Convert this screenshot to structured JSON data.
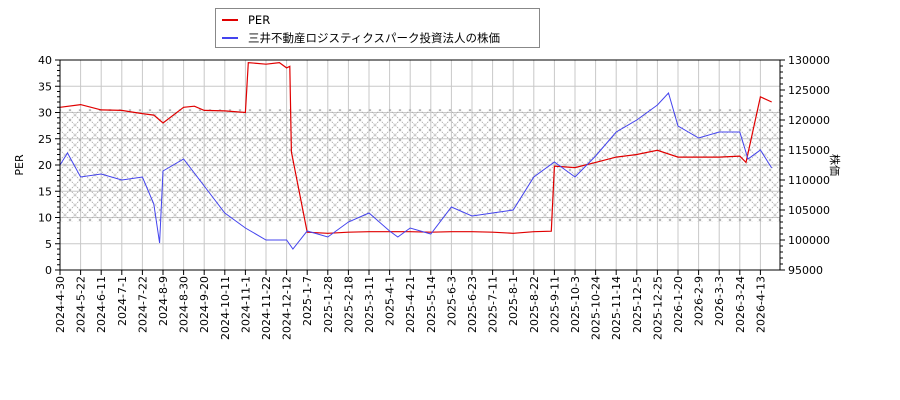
{
  "legend": {
    "items": [
      {
        "label": "PER",
        "color": "#e00000"
      },
      {
        "label": "三井不動産ロジスティクスパーク投資法人の株価",
        "color": "#4444ee"
      }
    ]
  },
  "axes": {
    "left_title": "PER",
    "right_title": "株価"
  },
  "chart_data": {
    "type": "line",
    "title": "",
    "xlabel": "",
    "ylabel": "PER",
    "ylabel_right": "株価",
    "ylim": [
      0,
      40
    ],
    "ylim_right": [
      95000,
      130000
    ],
    "yticks": [
      0,
      5,
      10,
      15,
      20,
      25,
      30,
      35,
      40
    ],
    "yticks_right": [
      95000,
      100000,
      105000,
      110000,
      115000,
      120000,
      125000,
      130000
    ],
    "grid": true,
    "legend_position": "top-left-outside",
    "x_tick_labels": [
      "2024-4-30",
      "2024-5-22",
      "2024-6-11",
      "2024-7-1",
      "2024-7-22",
      "2024-8-9",
      "2024-8-30",
      "2024-9-20",
      "2024-10-11",
      "2024-11-1",
      "2024-11-22",
      "2024-12-12",
      "2025-1-7",
      "2025-1-28",
      "2025-2-18",
      "2025-3-11",
      "2025-4-1",
      "2025-4-21",
      "2025-5-14",
      "2025-6-3",
      "2025-6-23",
      "2025-7-11",
      "2025-8-1",
      "2025-8-22",
      "2025-9-11",
      "2025-10-3",
      "2025-10-24",
      "2025-11-14",
      "2025-12-5",
      "2025-12-25",
      "2026-1-20",
      "2026-2-9",
      "2026-3-3",
      "2026-3-24",
      "2026-4-13"
    ],
    "shaded_band": {
      "axis": "right",
      "from": 103000,
      "to": 121800,
      "pattern": "crosshatch"
    },
    "series": [
      {
        "name": "PER",
        "axis": "left",
        "color": "#e00000",
        "x": [
          "2024-4-30",
          "2024-5-22",
          "2024-6-11",
          "2024-7-1",
          "2024-7-22",
          "2024-8-1",
          "2024-8-9",
          "2024-8-30",
          "2024-9-10",
          "2024-9-20",
          "2024-10-11",
          "2024-11-1",
          "2024-11-4",
          "2024-11-22",
          "2024-12-5",
          "2024-12-12",
          "2024-12-16",
          "2024-12-18",
          "2025-1-7",
          "2025-1-28",
          "2025-2-18",
          "2025-3-11",
          "2025-4-1",
          "2025-4-21",
          "2025-5-14",
          "2025-6-3",
          "2025-6-23",
          "2025-7-11",
          "2025-8-1",
          "2025-8-22",
          "2025-9-8",
          "2025-9-11",
          "2025-10-3",
          "2025-10-24",
          "2025-11-14",
          "2025-12-5",
          "2025-12-25",
          "2026-1-20",
          "2026-2-9",
          "2026-3-3",
          "2026-3-24",
          "2026-3-30",
          "2026-4-13",
          "2026-4-24"
        ],
        "values": [
          31.0,
          31.5,
          30.5,
          30.4,
          29.8,
          29.5,
          28.0,
          31.0,
          31.2,
          30.4,
          30.3,
          30.0,
          39.5,
          39.2,
          39.5,
          38.5,
          38.8,
          22.5,
          7.2,
          7.0,
          7.2,
          7.3,
          7.3,
          7.3,
          7.2,
          7.3,
          7.3,
          7.2,
          7.0,
          7.3,
          7.4,
          19.8,
          19.5,
          20.5,
          21.5,
          22.0,
          22.8,
          21.5,
          21.5,
          21.5,
          21.7,
          20.5,
          33.0,
          32.0
        ]
      },
      {
        "name": "三井不動産ロジスティクスパーク投資法人の株価",
        "axis": "right",
        "color": "#4444ee",
        "x": [
          "2024-4-30",
          "2024-5-8",
          "2024-5-22",
          "2024-6-11",
          "2024-7-1",
          "2024-7-22",
          "2024-8-1",
          "2024-8-6",
          "2024-8-9",
          "2024-8-30",
          "2024-9-20",
          "2024-10-11",
          "2024-11-1",
          "2024-11-22",
          "2024-12-12",
          "2024-12-20",
          "2025-1-7",
          "2025-1-28",
          "2025-2-18",
          "2025-3-11",
          "2025-4-1",
          "2025-4-9",
          "2025-4-21",
          "2025-5-14",
          "2025-6-3",
          "2025-6-23",
          "2025-7-11",
          "2025-8-1",
          "2025-8-22",
          "2025-9-11",
          "2025-10-3",
          "2025-10-24",
          "2025-11-14",
          "2025-12-5",
          "2025-12-25",
          "2026-1-8",
          "2026-1-20",
          "2026-2-9",
          "2026-3-3",
          "2026-3-24",
          "2026-4-1",
          "2026-4-13",
          "2026-4-24"
        ],
        "values": [
          112500,
          114500,
          110500,
          111000,
          110000,
          110500,
          106000,
          99500,
          111500,
          113500,
          109000,
          104500,
          102000,
          100000,
          100000,
          98500,
          101500,
          100500,
          103000,
          104500,
          101500,
          100500,
          102000,
          101000,
          105500,
          104000,
          104500,
          105000,
          110500,
          113000,
          110500,
          114000,
          118000,
          120000,
          122500,
          124500,
          119000,
          117000,
          118000,
          118000,
          113500,
          115000,
          112000
        ]
      }
    ]
  }
}
